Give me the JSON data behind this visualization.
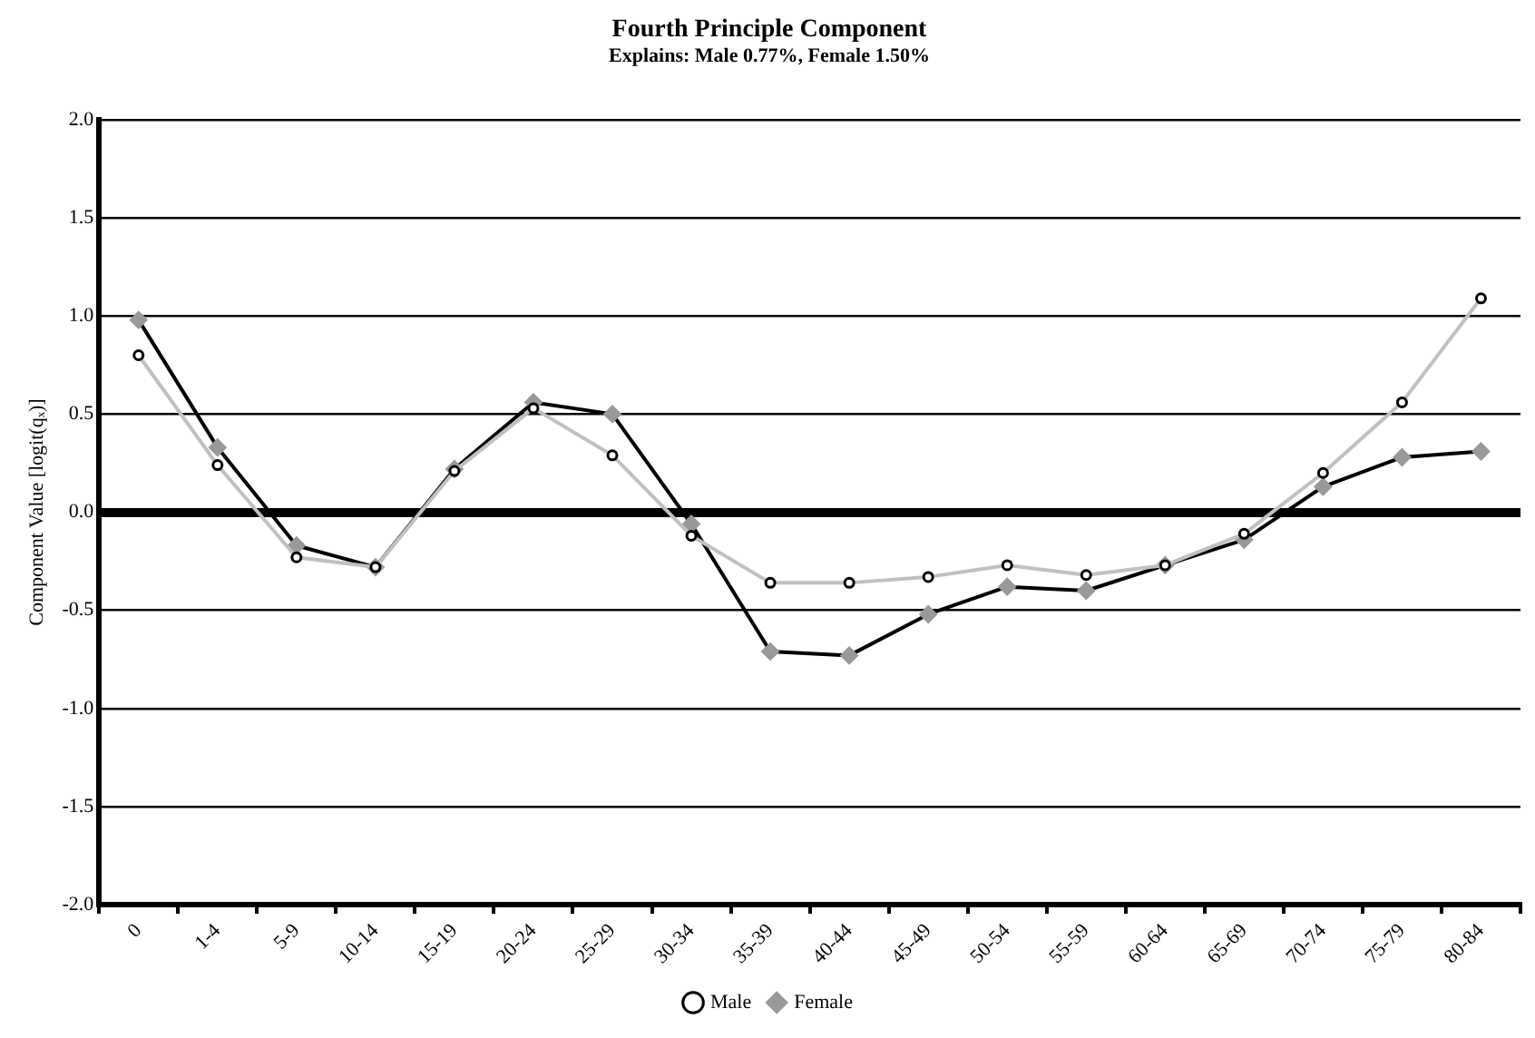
{
  "chart_data": {
    "type": "line",
    "title": "Fourth Principle Component",
    "subtitle": "Explains: Male 0.77%, Female 1.50%",
    "ylabel": "Component Value [logit(qₓ)]",
    "categories": [
      "0",
      "1-4",
      "5-9",
      "10-14",
      "15-19",
      "20-24",
      "25-29",
      "30-34",
      "35-39",
      "40-44",
      "45-49",
      "50-54",
      "55-59",
      "60-64",
      "65-69",
      "70-74",
      "75-79",
      "80-84"
    ],
    "series": [
      {
        "name": "Male",
        "color": "#c0c0c0",
        "marker": "circle",
        "values": [
          0.8,
          0.24,
          -0.23,
          -0.28,
          0.21,
          0.53,
          0.29,
          -0.12,
          -0.36,
          -0.36,
          -0.33,
          -0.27,
          -0.32,
          -0.27,
          -0.11,
          0.2,
          0.56,
          1.09
        ]
      },
      {
        "name": "Female",
        "color": "#000000",
        "marker": "diamond",
        "values": [
          0.98,
          0.33,
          -0.17,
          -0.28,
          0.22,
          0.56,
          0.5,
          -0.06,
          -0.71,
          -0.73,
          -0.52,
          -0.38,
          -0.4,
          -0.27,
          -0.14,
          0.13,
          0.28,
          0.31
        ]
      }
    ],
    "ylim": [
      -2.0,
      2.0
    ],
    "yticks": [
      {
        "value": -2,
        "label": "-2.0"
      },
      {
        "value": -1.5,
        "label": "-1.5"
      },
      {
        "value": -1,
        "label": "-1.0"
      },
      {
        "value": -0.5,
        "label": "-0.5"
      },
      {
        "value": 0,
        "label": "0.0"
      },
      {
        "value": 0.5,
        "label": "0.5"
      },
      {
        "value": 1,
        "label": "1.0"
      },
      {
        "value": 1.5,
        "label": "1.5"
      },
      {
        "value": 2,
        "label": "2.0"
      }
    ],
    "grid": "y",
    "legend": "bottom",
    "line_style": "solid"
  }
}
